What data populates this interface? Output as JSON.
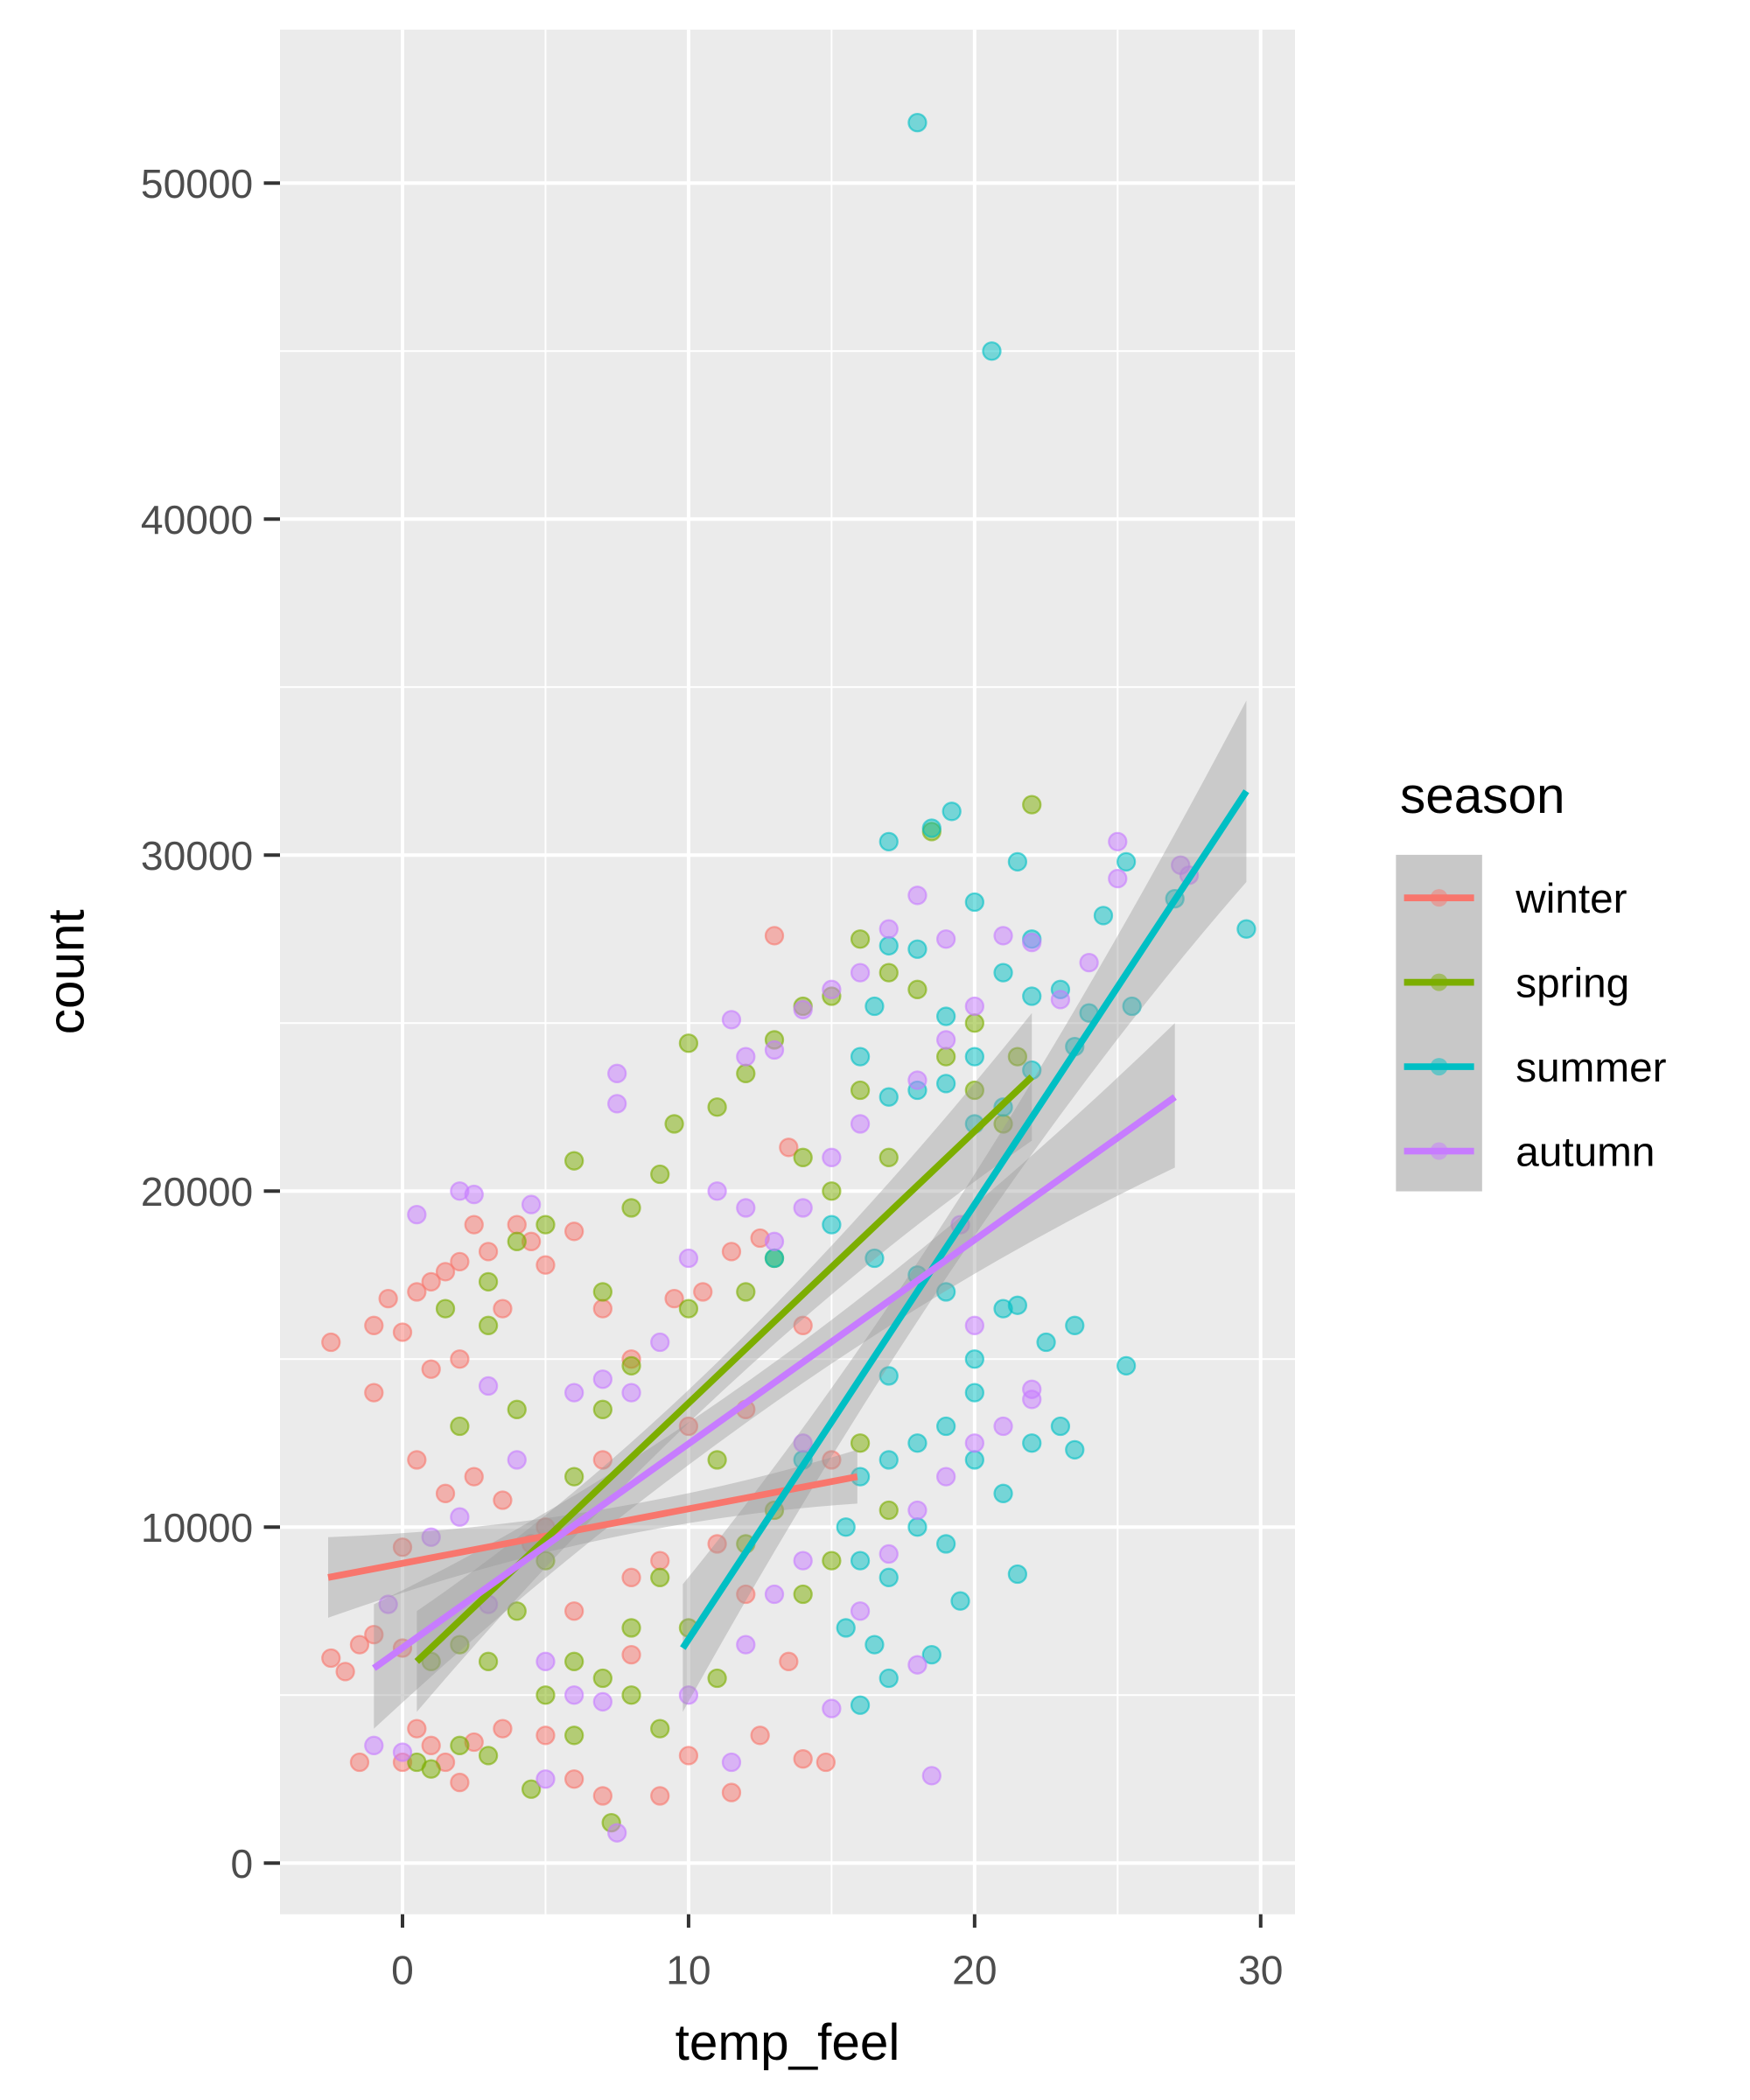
{
  "chart_data": {
    "type": "scatter",
    "title": "",
    "xlabel": "temp_feel",
    "ylabel": "count",
    "xlim": [
      -4.3,
      31
    ],
    "ylim": [
      -1500,
      54500
    ],
    "xticks": [
      0,
      10,
      20,
      30
    ],
    "xtick_labels": [
      "0",
      "10",
      "20",
      "30"
    ],
    "yticks": [
      0,
      10000,
      20000,
      30000,
      40000,
      50000
    ],
    "ytick_labels": [
      "0",
      "10000",
      "20000",
      "30000",
      "40000",
      "50000"
    ],
    "grid": true,
    "legend": {
      "title": "season",
      "placement": "right",
      "entries": [
        "winter",
        "spring",
        "summer",
        "autumn"
      ]
    },
    "series": [
      {
        "name": "winter",
        "color": "#F8766D",
        "points": [
          [
            -2.5,
            15500
          ],
          [
            -1,
            16000
          ],
          [
            -0.5,
            16800
          ],
          [
            0,
            15800
          ],
          [
            0.5,
            17000
          ],
          [
            1,
            17300
          ],
          [
            1.5,
            17600
          ],
          [
            2,
            17900
          ],
          [
            2.5,
            19000
          ],
          [
            3,
            18200
          ],
          [
            4,
            19000
          ],
          [
            4.5,
            18500
          ],
          [
            5,
            17800
          ],
          [
            3.5,
            16500
          ],
          [
            2,
            15000
          ],
          [
            1,
            14700
          ],
          [
            -1,
            14000
          ],
          [
            0.5,
            12000
          ],
          [
            1.5,
            11000
          ],
          [
            2.5,
            11500
          ],
          [
            3.5,
            10800
          ],
          [
            4.5,
            9500
          ],
          [
            0,
            9400
          ],
          [
            -2.5,
            6100
          ],
          [
            -2,
            5700
          ],
          [
            -1.5,
            6500
          ],
          [
            -1,
            6800
          ],
          [
            0,
            6400
          ],
          [
            0.5,
            4000
          ],
          [
            1,
            3500
          ],
          [
            1.5,
            3000
          ],
          [
            2,
            2400
          ],
          [
            0,
            3000
          ],
          [
            -1.5,
            3000
          ],
          [
            2.5,
            3600
          ],
          [
            3.5,
            4000
          ],
          [
            5,
            3800
          ],
          [
            6,
            2500
          ],
          [
            7,
            2000
          ],
          [
            8,
            6200
          ],
          [
            9,
            2000
          ],
          [
            10,
            3200
          ],
          [
            11.5,
            2100
          ],
          [
            12.5,
            3800
          ],
          [
            14,
            3100
          ],
          [
            14.8,
            3000
          ],
          [
            13.5,
            6000
          ],
          [
            12,
            8000
          ],
          [
            11,
            9500
          ],
          [
            9,
            9000
          ],
          [
            8,
            8500
          ],
          [
            6,
            7500
          ],
          [
            5,
            10000
          ],
          [
            7,
            12000
          ],
          [
            8,
            15000
          ],
          [
            9.5,
            16800
          ],
          [
            10.5,
            17000
          ],
          [
            11.5,
            18200
          ],
          [
            12.5,
            18600
          ],
          [
            13,
            27600
          ],
          [
            13.5,
            21300
          ],
          [
            14,
            16000
          ],
          [
            15,
            12000
          ],
          [
            12,
            13500
          ],
          [
            10,
            13000
          ],
          [
            6,
            18800
          ],
          [
            7,
            16500
          ]
        ],
        "fit": {
          "x": [
            -2.6,
            15.9
          ],
          "y": [
            8500,
            11500
          ]
        },
        "band": [
          [
            -2.6,
            7300,
            9700
          ],
          [
            7,
            9600,
            10500
          ],
          [
            15.9,
            10700,
            12300
          ]
        ]
      },
      {
        "name": "spring",
        "color": "#7CAE00",
        "points": [
          [
            0.5,
            3000
          ],
          [
            1,
            2800
          ],
          [
            2,
            3500
          ],
          [
            3,
            3200
          ],
          [
            4.5,
            2200
          ],
          [
            6,
            3800
          ],
          [
            7.3,
            1200
          ],
          [
            5,
            5000
          ],
          [
            6,
            6000
          ],
          [
            7,
            5500
          ],
          [
            8,
            7000
          ],
          [
            9,
            4000
          ],
          [
            4,
            7500
          ],
          [
            3,
            6000
          ],
          [
            2,
            6500
          ],
          [
            1,
            6000
          ],
          [
            5,
            9000
          ],
          [
            6,
            11500
          ],
          [
            7,
            13500
          ],
          [
            8,
            14800
          ],
          [
            4,
            13500
          ],
          [
            3,
            17300
          ],
          [
            4,
            18500
          ],
          [
            5,
            19000
          ],
          [
            6,
            20900
          ],
          [
            7,
            17000
          ],
          [
            8,
            19500
          ],
          [
            9,
            20500
          ],
          [
            9.5,
            22000
          ],
          [
            10,
            24400
          ],
          [
            11,
            22500
          ],
          [
            12,
            23500
          ],
          [
            13,
            24500
          ],
          [
            14,
            25500
          ],
          [
            15,
            25800
          ],
          [
            16,
            27500
          ],
          [
            17,
            26500
          ],
          [
            18,
            26000
          ],
          [
            18.5,
            30700
          ],
          [
            19,
            24000
          ],
          [
            20,
            23000
          ],
          [
            21,
            22000
          ],
          [
            22,
            31500
          ],
          [
            21.5,
            24000
          ],
          [
            20,
            25000
          ],
          [
            16,
            23000
          ],
          [
            17,
            21000
          ],
          [
            15,
            20000
          ],
          [
            14,
            21000
          ],
          [
            13,
            18000
          ],
          [
            12,
            17000
          ],
          [
            10,
            16500
          ],
          [
            11,
            12000
          ],
          [
            12,
            9500
          ],
          [
            13,
            10500
          ],
          [
            14,
            8000
          ],
          [
            15,
            9000
          ],
          [
            16,
            12500
          ],
          [
            17,
            10500
          ],
          [
            9,
            8500
          ],
          [
            10,
            7000
          ],
          [
            11,
            5500
          ],
          [
            8,
            5000
          ],
          [
            1.5,
            16500
          ],
          [
            3,
            16000
          ],
          [
            2,
            13000
          ]
        ],
        "fit": {
          "x": [
            0.5,
            22
          ],
          "y": [
            6000,
            23400
          ]
        },
        "band": [
          [
            0.5,
            4500,
            7500
          ],
          [
            11,
            14000,
            15000
          ],
          [
            22,
            21500,
            25300
          ]
        ]
      },
      {
        "name": "summer",
        "color": "#00BFC4",
        "points": [
          [
            18,
            51800
          ],
          [
            20.6,
            45000
          ],
          [
            17,
            30400
          ],
          [
            19.2,
            31300
          ],
          [
            18.5,
            30800
          ],
          [
            21.5,
            29800
          ],
          [
            25.3,
            29800
          ],
          [
            27,
            28700
          ],
          [
            29.5,
            27800
          ],
          [
            24.5,
            28200
          ],
          [
            22,
            27500
          ],
          [
            20,
            28600
          ],
          [
            18,
            27200
          ],
          [
            17,
            27300
          ],
          [
            16.5,
            25500
          ],
          [
            19,
            25200
          ],
          [
            20,
            24000
          ],
          [
            21,
            26500
          ],
          [
            22,
            25800
          ],
          [
            23,
            26000
          ],
          [
            24,
            25300
          ],
          [
            25.5,
            25500
          ],
          [
            23.5,
            24300
          ],
          [
            22,
            23600
          ],
          [
            21,
            22500
          ],
          [
            20,
            22000
          ],
          [
            19,
            23200
          ],
          [
            18,
            23000
          ],
          [
            17,
            22800
          ],
          [
            16,
            24000
          ],
          [
            15,
            19000
          ],
          [
            16.5,
            18000
          ],
          [
            18,
            17500
          ],
          [
            19,
            17000
          ],
          [
            20,
            15000
          ],
          [
            21,
            16500
          ],
          [
            21.5,
            16600
          ],
          [
            22.5,
            15500
          ],
          [
            23.5,
            16000
          ],
          [
            25.3,
            14800
          ],
          [
            20,
            14000
          ],
          [
            19,
            13000
          ],
          [
            18,
            12500
          ],
          [
            17,
            12000
          ],
          [
            16,
            11500
          ],
          [
            15.5,
            10000
          ],
          [
            16,
            9000
          ],
          [
            17,
            8500
          ],
          [
            18,
            10000
          ],
          [
            19,
            9500
          ],
          [
            20,
            12000
          ],
          [
            21,
            11000
          ],
          [
            22,
            12500
          ],
          [
            23,
            13000
          ],
          [
            23.5,
            12300
          ],
          [
            21.5,
            8600
          ],
          [
            19.5,
            7800
          ],
          [
            18.5,
            6200
          ],
          [
            17,
            5500
          ],
          [
            16,
            4700
          ],
          [
            15.5,
            7000
          ],
          [
            16.5,
            6500
          ],
          [
            13,
            18000
          ],
          [
            14,
            12000
          ],
          [
            17,
            14500
          ]
        ],
        "fit": {
          "x": [
            9.8,
            29.5
          ],
          "y": [
            6400,
            31900
          ]
        },
        "band": [
          [
            9.8,
            4500,
            8300
          ],
          [
            19.6,
            18200,
            20000
          ],
          [
            29.5,
            29200,
            34600
          ]
        ]
      },
      {
        "name": "autumn",
        "color": "#C77CFF",
        "points": [
          [
            -1,
            3500
          ],
          [
            0,
            3300
          ],
          [
            -0.5,
            7700
          ],
          [
            0.5,
            19300
          ],
          [
            2,
            20000
          ],
          [
            2.5,
            19900
          ],
          [
            4.5,
            19600
          ],
          [
            7.5,
            23500
          ],
          [
            7.5,
            22600
          ],
          [
            11.5,
            25100
          ],
          [
            12,
            24000
          ],
          [
            13,
            24200
          ],
          [
            14,
            25400
          ],
          [
            15,
            26000
          ],
          [
            16,
            26500
          ],
          [
            17,
            27800
          ],
          [
            18,
            28800
          ],
          [
            19,
            27500
          ],
          [
            21,
            27600
          ],
          [
            22,
            27400
          ],
          [
            25,
            30400
          ],
          [
            25,
            29300
          ],
          [
            27.2,
            29700
          ],
          [
            27.5,
            29400
          ],
          [
            24,
            26800
          ],
          [
            23,
            25700
          ],
          [
            20,
            25500
          ],
          [
            19,
            24500
          ],
          [
            18,
            23300
          ],
          [
            16,
            22000
          ],
          [
            15,
            21000
          ],
          [
            14,
            19500
          ],
          [
            13,
            18500
          ],
          [
            12,
            19500
          ],
          [
            11,
            20000
          ],
          [
            10,
            18000
          ],
          [
            9,
            15500
          ],
          [
            8,
            14000
          ],
          [
            7,
            14400
          ],
          [
            6,
            14000
          ],
          [
            4,
            12000
          ],
          [
            3,
            14200
          ],
          [
            2,
            10300
          ],
          [
            1,
            9700
          ],
          [
            3,
            7700
          ],
          [
            5,
            6000
          ],
          [
            6,
            5000
          ],
          [
            7,
            4800
          ],
          [
            7.5,
            900
          ],
          [
            5,
            2500
          ],
          [
            11.5,
            3000
          ],
          [
            10,
            5000
          ],
          [
            12,
            6500
          ],
          [
            13,
            8000
          ],
          [
            14,
            9000
          ],
          [
            15,
            4600
          ],
          [
            16,
            7500
          ],
          [
            17,
            9200
          ],
          [
            18,
            10500
          ],
          [
            19,
            11500
          ],
          [
            20,
            12500
          ],
          [
            21,
            13000
          ],
          [
            22,
            13800
          ],
          [
            22,
            14100
          ],
          [
            18.5,
            2600
          ],
          [
            18,
            5900
          ],
          [
            14,
            12500
          ],
          [
            19.5,
            19000
          ],
          [
            20,
            16000
          ]
        ],
        "fit": {
          "x": [
            -1,
            27
          ],
          "y": [
            5800,
            22800
          ]
        },
        "band": [
          [
            -1,
            4000,
            7700
          ],
          [
            13,
            13700,
            14900
          ],
          [
            27,
            20700,
            25000
          ]
        ]
      }
    ]
  }
}
